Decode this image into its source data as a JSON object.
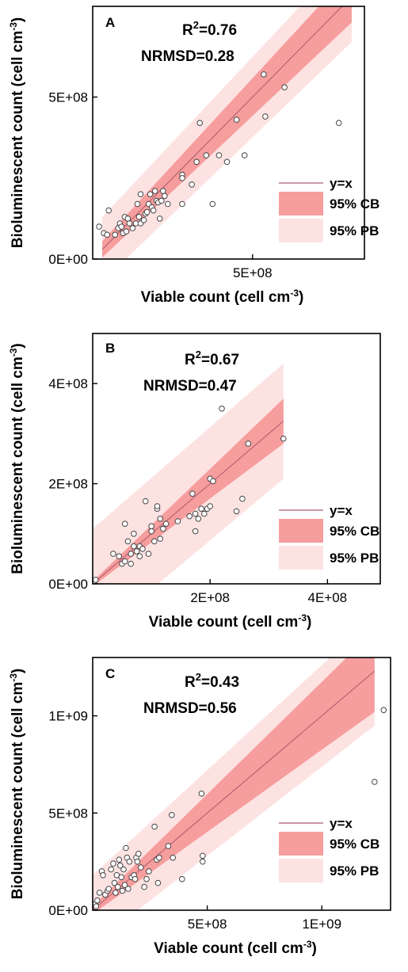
{
  "chart_data": [
    {
      "type": "scatter",
      "panel_label": "A",
      "xlabel": "Viable count (cell cm",
      "xlabel_sup": "-3",
      "ylabel": "Bioluminescent count (cell cm",
      "ylabel_sup": "-3",
      "r2_label": "R",
      "r2_sup": "2",
      "r2_value": "=0.76",
      "nrmsd": "NRMSD=0.28",
      "xlim": [
        0,
        850000000
      ],
      "ylim": [
        0,
        780000000
      ],
      "xticks": [
        {
          "value": 500000000,
          "label": "5E+08"
        }
      ],
      "yticks": [
        {
          "value": 0,
          "label": "0E+00"
        },
        {
          "value": 500000000,
          "label": "5E+08"
        }
      ],
      "line_range": [
        30000000,
        810000000
      ],
      "cb_halfwidth": [
        25000000,
        80000000
      ],
      "pb_halfwidth": [
        100000000,
        140000000
      ],
      "legend": [
        "y=x",
        "95% CB",
        "95% PB"
      ],
      "points": [
        [
          20000000,
          100000000
        ],
        [
          35000000,
          80000000
        ],
        [
          45000000,
          75000000
        ],
        [
          50000000,
          150000000
        ],
        [
          70000000,
          75000000
        ],
        [
          80000000,
          95000000
        ],
        [
          85000000,
          110000000
        ],
        [
          90000000,
          100000000
        ],
        [
          95000000,
          80000000
        ],
        [
          100000000,
          130000000
        ],
        [
          105000000,
          85000000
        ],
        [
          110000000,
          125000000
        ],
        [
          115000000,
          110000000
        ],
        [
          125000000,
          95000000
        ],
        [
          135000000,
          110000000
        ],
        [
          140000000,
          170000000
        ],
        [
          145000000,
          130000000
        ],
        [
          150000000,
          110000000
        ],
        [
          150000000,
          200000000
        ],
        [
          160000000,
          120000000
        ],
        [
          165000000,
          140000000
        ],
        [
          170000000,
          145000000
        ],
        [
          175000000,
          170000000
        ],
        [
          180000000,
          200000000
        ],
        [
          185000000,
          160000000
        ],
        [
          190000000,
          150000000
        ],
        [
          195000000,
          210000000
        ],
        [
          200000000,
          180000000
        ],
        [
          205000000,
          175000000
        ],
        [
          210000000,
          125000000
        ],
        [
          215000000,
          180000000
        ],
        [
          220000000,
          210000000
        ],
        [
          225000000,
          195000000
        ],
        [
          235000000,
          170000000
        ],
        [
          280000000,
          260000000
        ],
        [
          280000000,
          250000000
        ],
        [
          280000000,
          170000000
        ],
        [
          310000000,
          230000000
        ],
        [
          325000000,
          300000000
        ],
        [
          335000000,
          420000000
        ],
        [
          355000000,
          320000000
        ],
        [
          375000000,
          170000000
        ],
        [
          395000000,
          320000000
        ],
        [
          420000000,
          300000000
        ],
        [
          450000000,
          430000000
        ],
        [
          475000000,
          320000000
        ],
        [
          535000000,
          570000000
        ],
        [
          540000000,
          440000000
        ],
        [
          600000000,
          530000000
        ],
        [
          770000000,
          420000000
        ]
      ]
    },
    {
      "type": "scatter",
      "panel_label": "B",
      "xlabel": "Viable count (cell cm",
      "xlabel_sup": "-3",
      "ylabel": "Bioluminescent count (cell cm",
      "ylabel_sup": "-3",
      "r2_label": "R",
      "r2_sup": "2",
      "r2_value": "=0.67",
      "nrmsd": "NRMSD=0.47",
      "xlim": [
        0,
        490000000
      ],
      "ylim": [
        0,
        500000000
      ],
      "xticks": [
        {
          "value": 200000000,
          "label": "2E+08"
        },
        {
          "value": 400000000,
          "label": "4E+08"
        }
      ],
      "yticks": [
        {
          "value": 0,
          "label": "0E+00"
        },
        {
          "value": 200000000,
          "label": "2E+08"
        },
        {
          "value": 400000000,
          "label": "4E+08"
        }
      ],
      "line_range": [
        0,
        325000000
      ],
      "cb_halfwidth": [
        5000000,
        45000000
      ],
      "pb_halfwidth": [
        110000000,
        115000000
      ],
      "legend": [
        "y=x",
        "95% CB",
        "95% PB"
      ],
      "points": [
        [
          3000000,
          5000000
        ],
        [
          5000000,
          8000000
        ],
        [
          35000000,
          60000000
        ],
        [
          45000000,
          55000000
        ],
        [
          50000000,
          40000000
        ],
        [
          55000000,
          45000000
        ],
        [
          55000000,
          120000000
        ],
        [
          60000000,
          85000000
        ],
        [
          65000000,
          40000000
        ],
        [
          65000000,
          60000000
        ],
        [
          70000000,
          75000000
        ],
        [
          70000000,
          100000000
        ],
        [
          75000000,
          65000000
        ],
        [
          80000000,
          55000000
        ],
        [
          80000000,
          75000000
        ],
        [
          85000000,
          70000000
        ],
        [
          90000000,
          165000000
        ],
        [
          95000000,
          60000000
        ],
        [
          100000000,
          105000000
        ],
        [
          100000000,
          115000000
        ],
        [
          105000000,
          85000000
        ],
        [
          110000000,
          150000000
        ],
        [
          110000000,
          155000000
        ],
        [
          115000000,
          90000000
        ],
        [
          115000000,
          130000000
        ],
        [
          120000000,
          110000000
        ],
        [
          125000000,
          120000000
        ],
        [
          145000000,
          125000000
        ],
        [
          165000000,
          135000000
        ],
        [
          170000000,
          180000000
        ],
        [
          175000000,
          105000000
        ],
        [
          175000000,
          140000000
        ],
        [
          180000000,
          130000000
        ],
        [
          185000000,
          150000000
        ],
        [
          190000000,
          140000000
        ],
        [
          195000000,
          150000000
        ],
        [
          200000000,
          155000000
        ],
        [
          200000000,
          210000000
        ],
        [
          205000000,
          205000000
        ],
        [
          220000000,
          350000000
        ],
        [
          245000000,
          145000000
        ],
        [
          255000000,
          170000000
        ],
        [
          265000000,
          280000000
        ],
        [
          325000000,
          290000000
        ]
      ]
    },
    {
      "type": "scatter",
      "panel_label": "C",
      "xlabel": "Viable count (cell cm",
      "xlabel_sup": "-3",
      "ylabel": "Bioluminescent count (cell cm",
      "ylabel_sup": "-3",
      "r2_label": "R",
      "r2_sup": "2",
      "r2_value": "=0.43",
      "nrmsd": "NRMSD=0.56",
      "xlim": [
        0,
        1300000000
      ],
      "ylim": [
        0,
        1300000000
      ],
      "xticks": [
        {
          "value": 500000000,
          "label": "5E+08"
        },
        {
          "value": 1000000000,
          "label": "1E+09"
        }
      ],
      "yticks": [
        {
          "value": 0,
          "label": "0E+00"
        },
        {
          "value": 500000000,
          "label": "5E+08"
        },
        {
          "value": 1000000000,
          "label": "1E+09"
        }
      ],
      "line_range": [
        0,
        1230000000
      ],
      "cb_halfwidth": [
        20000000,
        210000000
      ],
      "pb_halfwidth": [
        180000000,
        280000000
      ],
      "legend": [
        "y=x",
        "95% CB",
        "95% PB"
      ],
      "points": [
        [
          10000000,
          30000000
        ],
        [
          15000000,
          20000000
        ],
        [
          20000000,
          50000000
        ],
        [
          30000000,
          90000000
        ],
        [
          40000000,
          200000000
        ],
        [
          45000000,
          180000000
        ],
        [
          55000000,
          80000000
        ],
        [
          65000000,
          100000000
        ],
        [
          70000000,
          110000000
        ],
        [
          80000000,
          210000000
        ],
        [
          90000000,
          240000000
        ],
        [
          95000000,
          140000000
        ],
        [
          100000000,
          90000000
        ],
        [
          105000000,
          180000000
        ],
        [
          110000000,
          120000000
        ],
        [
          115000000,
          260000000
        ],
        [
          120000000,
          230000000
        ],
        [
          125000000,
          170000000
        ],
        [
          130000000,
          100000000
        ],
        [
          135000000,
          210000000
        ],
        [
          140000000,
          130000000
        ],
        [
          145000000,
          320000000
        ],
        [
          150000000,
          270000000
        ],
        [
          155000000,
          110000000
        ],
        [
          160000000,
          250000000
        ],
        [
          170000000,
          170000000
        ],
        [
          180000000,
          180000000
        ],
        [
          185000000,
          160000000
        ],
        [
          190000000,
          270000000
        ],
        [
          195000000,
          250000000
        ],
        [
          200000000,
          290000000
        ],
        [
          210000000,
          220000000
        ],
        [
          225000000,
          120000000
        ],
        [
          235000000,
          160000000
        ],
        [
          245000000,
          200000000
        ],
        [
          270000000,
          430000000
        ],
        [
          280000000,
          260000000
        ],
        [
          285000000,
          140000000
        ],
        [
          290000000,
          270000000
        ],
        [
          330000000,
          330000000
        ],
        [
          345000000,
          490000000
        ],
        [
          350000000,
          270000000
        ],
        [
          390000000,
          160000000
        ],
        [
          475000000,
          600000000
        ],
        [
          480000000,
          280000000
        ],
        [
          480000000,
          250000000
        ],
        [
          1230000000,
          660000000
        ],
        [
          1270000000,
          1030000000
        ]
      ]
    }
  ]
}
